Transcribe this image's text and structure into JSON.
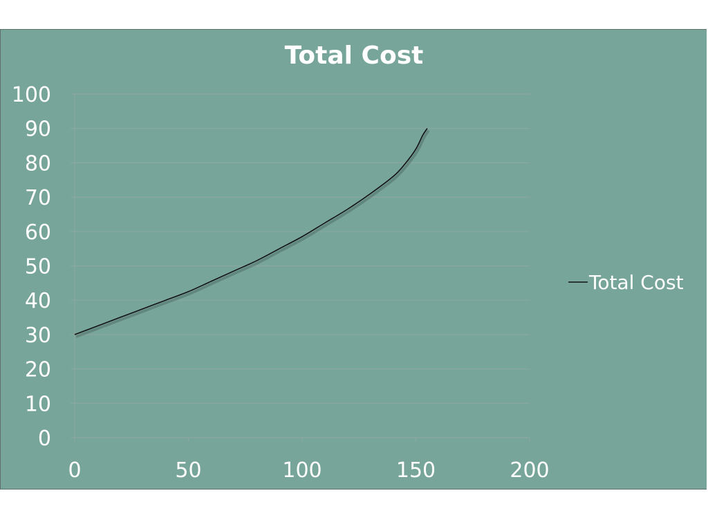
{
  "chart_data": {
    "type": "line",
    "title": "Total Cost",
    "xlabel": "",
    "ylabel": "",
    "xlim": [
      0,
      200
    ],
    "ylim": [
      0,
      100
    ],
    "x_ticks": [
      0,
      50,
      100,
      150,
      200
    ],
    "y_ticks": [
      0,
      10,
      20,
      30,
      40,
      50,
      60,
      70,
      80,
      90,
      100
    ],
    "grid": "horizontal",
    "legend_position": "right",
    "series": [
      {
        "name": "Total Cost",
        "x": [
          0,
          10,
          20,
          30,
          40,
          50,
          60,
          70,
          80,
          90,
          100,
          110,
          120,
          130,
          140,
          145,
          150,
          153,
          155
        ],
        "y": [
          30,
          32.5,
          35,
          37.5,
          40,
          42.5,
          45.5,
          48.5,
          51.5,
          55,
          58.5,
          62.5,
          66.5,
          71,
          76,
          79.5,
          84,
          88,
          90
        ]
      }
    ]
  },
  "colors": {
    "background": "#78a59a",
    "gridline": "#8aa89f",
    "line": "#111111",
    "text": "#ffffff"
  }
}
